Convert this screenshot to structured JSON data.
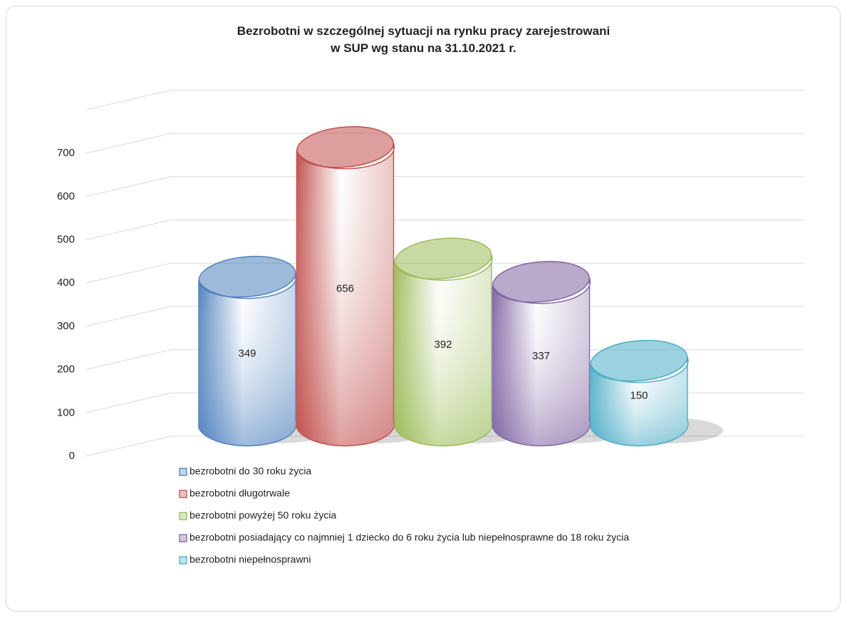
{
  "chart_data": {
    "type": "bar",
    "title": "Bezrobotni w szczególnej sytuacji na rynku pracy zarejestrowani\nw SUP wg stanu na 31.10.2021 r.",
    "series": [
      {
        "name": "bezrobotni do 30 roku życia",
        "color": "#4f81bd",
        "values": [
          349
        ]
      },
      {
        "name": "bezrobotni długotrwale",
        "color": "#c0504d",
        "values": [
          656
        ]
      },
      {
        "name": "bezrobotni powyżej 50 roku życia",
        "color": "#9bbb59",
        "values": [
          392
        ]
      },
      {
        "name": "bezrobotni posiadający co najmniej 1 dziecko do 6 roku życia  lub niepełnosprawne do 18 roku życia",
        "color": "#8064a2",
        "values": [
          337
        ]
      },
      {
        "name": "bezrobotni niepełnosprawni",
        "color": "#4bacc6",
        "values": [
          150
        ]
      }
    ],
    "ylim": [
      0,
      800
    ],
    "yticks": [
      0,
      100,
      200,
      300,
      400,
      500,
      600,
      700
    ],
    "grid": true,
    "legend": "bottom"
  }
}
